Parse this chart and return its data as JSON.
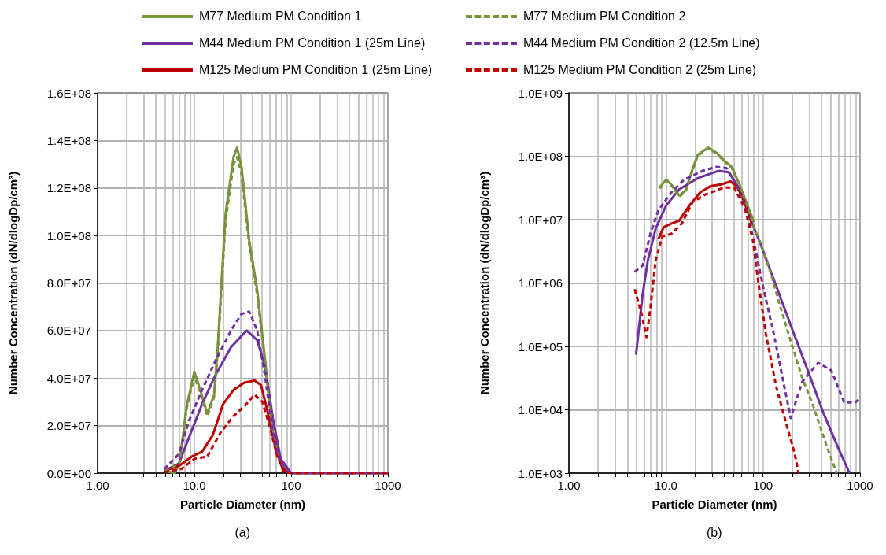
{
  "chart_data": [
    {
      "type": "line",
      "xlabel": "Particle Diameter (nm)",
      "ylabel": "Number Concentration (dN/dlogDp/cm³)",
      "annotations": [
        "(a)"
      ],
      "log": "x",
      "grid": true,
      "legend": "top",
      "marker": "none",
      "xlim": [
        1,
        1000
      ],
      "ylim": [
        0,
        160000000
      ],
      "xticks": [
        {
          "value": 1,
          "label": "1.00"
        },
        {
          "value": 2,
          "label": null
        },
        {
          "value": 3,
          "label": null
        },
        {
          "value": 4,
          "label": null
        },
        {
          "value": 5,
          "label": null
        },
        {
          "value": 6,
          "label": null
        },
        {
          "value": 7,
          "label": null
        },
        {
          "value": 8,
          "label": null
        },
        {
          "value": 9,
          "label": null
        },
        {
          "value": 10,
          "label": "10.0"
        },
        {
          "value": 20,
          "label": null
        },
        {
          "value": 30,
          "label": null
        },
        {
          "value": 40,
          "label": null
        },
        {
          "value": 50,
          "label": null
        },
        {
          "value": 60,
          "label": null
        },
        {
          "value": 70,
          "label": null
        },
        {
          "value": 80,
          "label": null
        },
        {
          "value": 90,
          "label": null
        },
        {
          "value": 100,
          "label": "100"
        },
        {
          "value": 200,
          "label": null
        },
        {
          "value": 300,
          "label": null
        },
        {
          "value": 400,
          "label": null
        },
        {
          "value": 500,
          "label": null
        },
        {
          "value": 600,
          "label": null
        },
        {
          "value": 700,
          "label": null
        },
        {
          "value": 800,
          "label": null
        },
        {
          "value": 900,
          "label": null
        },
        {
          "value": 1000,
          "label": "1000"
        }
      ],
      "yticks": [
        {
          "value": 0,
          "label": "0.0E+00"
        },
        {
          "value": 20000000,
          "label": "2.0E+07"
        },
        {
          "value": 40000000,
          "label": "4.0E+07"
        },
        {
          "value": 60000000,
          "label": "6.0E+07"
        },
        {
          "value": 80000000,
          "label": "8.0E+07"
        },
        {
          "value": 100000000,
          "label": "1.0E+08"
        },
        {
          "value": 120000000,
          "label": "1.2E+08"
        },
        {
          "value": 140000000,
          "label": "1.4E+08"
        },
        {
          "value": 160000000,
          "label": "1.6E+08"
        }
      ],
      "series": [
        {
          "name": "M77 Medium PM Condition 1",
          "color": "#77933c",
          "line_style": "solid",
          "x": [
            4.9,
            6.3,
            7.1,
            8.3,
            10,
            11.7,
            13.6,
            16,
            17.5,
            21,
            25.4,
            27.6,
            30.7,
            36.9,
            44.6,
            53.7,
            64.8,
            78,
            100,
            1000
          ],
          "values": [
            1000000,
            0,
            5000000,
            28000000,
            42700000,
            34000000,
            25000000,
            33000000,
            54000000,
            109000000,
            133000000,
            137000000,
            129000000,
            98000000,
            77000000,
            48000000,
            17000000,
            4000000,
            0,
            0
          ]
        },
        {
          "name": "M77 Medium PM Condition 2",
          "color": "#77933c",
          "line_style": "dashed",
          "x": [
            4.9,
            7,
            8.3,
            10,
            11.7,
            13.6,
            16,
            17.5,
            21,
            25.4,
            27.6,
            30.7,
            36.9,
            44.6,
            53.7,
            64.8,
            78,
            100,
            1000
          ],
          "values": [
            1000000,
            4000000,
            27000000,
            41000000,
            33000000,
            24000000,
            32000000,
            52000000,
            106000000,
            130000000,
            133000000,
            126000000,
            96000000,
            75000000,
            47000000,
            16000000,
            3000000,
            0,
            0
          ]
        },
        {
          "name": "M44 Medium PM Condition 1 (25m Line)",
          "color": "#7030a0",
          "line_style": "solid",
          "x": [
            4.9,
            6.9,
            8.8,
            12,
            16.4,
            23.9,
            34.7,
            44.6,
            53.7,
            64.8,
            78,
            100,
            1000
          ],
          "values": [
            1000000,
            4000000,
            15000000,
            29000000,
            41000000,
            53000000,
            60000000,
            56000000,
            45000000,
            23000000,
            6000000,
            0,
            0
          ]
        },
        {
          "name": "M44 Medium PM Condition 2 (12.5m Line)",
          "color": "#7030a0",
          "line_style": "dashed",
          "x": [
            4.9,
            6.9,
            8.8,
            12,
            16.4,
            23.9,
            30.7,
            36.9,
            44.6,
            53.7,
            64.8,
            78,
            100,
            1000
          ],
          "values": [
            1700000,
            8000000,
            22000000,
            35000000,
            47000000,
            60000000,
            67000000,
            68000000,
            60000000,
            41000000,
            17000000,
            4000000,
            0,
            0
          ]
        },
        {
          "name": "M125 Medium PM Condition 1 (25m Line)",
          "color": "#c00000",
          "line_style": "solid",
          "x": [
            4.9,
            6.9,
            9.4,
            12,
            15.5,
            19.8,
            25.4,
            32.6,
            41.9,
            48.9,
            57,
            68.8,
            82.9,
            100,
            1000
          ],
          "values": [
            1000000,
            3000000,
            7000000,
            9000000,
            16000000,
            29000000,
            35000000,
            38000000,
            39000000,
            37000000,
            26000000,
            10500000,
            1000000,
            0,
            0
          ]
        },
        {
          "name": "M125 Medium PM Condition 2 (25m Line)",
          "color": "#c00000",
          "line_style": "dashed",
          "x": [
            4.9,
            7.3,
            10,
            13.6,
            18.6,
            25.4,
            32.6,
            41.9,
            50.4,
            60.6,
            73,
            88,
            100,
            1000
          ],
          "values": [
            500000,
            1700000,
            6000000,
            7000000,
            17000000,
            24000000,
            28000000,
            33000000,
            30000000,
            19000000,
            6000000,
            500000,
            0,
            0
          ]
        }
      ]
    },
    {
      "type": "line",
      "xlabel": "Particle Diameter (nm)",
      "ylabel": "Number Concentration (dN/dlogDp/cm³)",
      "annotations": [
        "(b)"
      ],
      "log": "xy",
      "grid": true,
      "marker": "none",
      "xlim": [
        1,
        1000
      ],
      "ylim": [
        1000,
        1000000000
      ],
      "xticks": [
        {
          "value": 1,
          "label": "1.00"
        },
        {
          "value": 2,
          "label": null
        },
        {
          "value": 3,
          "label": null
        },
        {
          "value": 4,
          "label": null
        },
        {
          "value": 5,
          "label": null
        },
        {
          "value": 6,
          "label": null
        },
        {
          "value": 7,
          "label": null
        },
        {
          "value": 8,
          "label": null
        },
        {
          "value": 9,
          "label": null
        },
        {
          "value": 10,
          "label": "10.0"
        },
        {
          "value": 20,
          "label": null
        },
        {
          "value": 30,
          "label": null
        },
        {
          "value": 40,
          "label": null
        },
        {
          "value": 50,
          "label": null
        },
        {
          "value": 60,
          "label": null
        },
        {
          "value": 70,
          "label": null
        },
        {
          "value": 80,
          "label": null
        },
        {
          "value": 90,
          "label": null
        },
        {
          "value": 100,
          "label": "100"
        },
        {
          "value": 200,
          "label": null
        },
        {
          "value": 300,
          "label": null
        },
        {
          "value": 400,
          "label": null
        },
        {
          "value": 500,
          "label": null
        },
        {
          "value": 600,
          "label": null
        },
        {
          "value": 700,
          "label": null
        },
        {
          "value": 800,
          "label": null
        },
        {
          "value": 900,
          "label": null
        },
        {
          "value": 1000,
          "label": "1000"
        }
      ],
      "yticks": [
        {
          "value": 1000,
          "label": "1.0E+03"
        },
        {
          "value": 10000,
          "label": "1.0E+04"
        },
        {
          "value": 100000,
          "label": "1.0E+05"
        },
        {
          "value": 1000000,
          "label": "1.0E+06"
        },
        {
          "value": 10000000,
          "label": "1.0E+07"
        },
        {
          "value": 100000000,
          "label": "1.0E+08"
        },
        {
          "value": 1000000000,
          "label": "1.0E+09"
        }
      ],
      "series": [
        {
          "color": "#77933c",
          "line_style": "solid",
          "x": [
            8.6,
            10.1,
            12.1,
            13.7,
            16,
            18.2,
            21.2,
            27.2,
            32.8,
            39.5,
            47.6,
            57.3,
            69.1,
            80.8
          ],
          "values": [
            32000000,
            43000000,
            32000000,
            24000000,
            29000000,
            54000000,
            105000000,
            137000000,
            115000000,
            87000000,
            68000000,
            36000000,
            17000000,
            9100000
          ]
        },
        {
          "color": "#77933c",
          "line_style": "dashed",
          "x": [
            8.6,
            10.1,
            12.1,
            13.7,
            16,
            18.2,
            21.2,
            27.2,
            32.8,
            39.5,
            47.6,
            57.3,
            69.1,
            83.7,
            94.6,
            121,
            146,
            198,
            255,
            326,
            445,
            574
          ],
          "values": [
            31000000,
            41000000,
            31000000,
            23000000,
            28000000,
            52000000,
            102000000,
            133000000,
            112000000,
            85000000,
            66000000,
            35000000,
            16000000,
            6600000,
            4100000,
            1400000,
            500000,
            107000,
            31000,
            12000,
            2900,
            1000
          ]
        },
        {
          "color": "#7030a0",
          "line_style": "solid",
          "x": [
            4.92,
            5.75,
            6.52,
            7.84,
            10.1,
            13.7,
            21.2,
            34.9,
            44.6,
            57.3,
            73.6,
            94.6,
            137,
            199,
            289,
            419,
            610,
            780
          ],
          "values": [
            74000,
            660000,
            2300000,
            7200000,
            17000000,
            30000000,
            45000000,
            59000000,
            56000000,
            30000000,
            10500000,
            4100000,
            890000,
            190000,
            42000,
            8900,
            2300,
            1000
          ]
        },
        {
          "color": "#7030a0",
          "line_style": "dashed",
          "x": [
            4.76,
            5.75,
            6.92,
            8.35,
            11.4,
            15.5,
            24,
            32.8,
            42.1,
            54.2,
            69.1,
            83.7,
            100,
            129,
            166,
            193,
            226,
            255,
            370,
            505,
            688,
            889,
            1000
          ],
          "values": [
            1500000,
            1900000,
            6000000,
            14000000,
            27000000,
            43000000,
            59000000,
            68000000,
            65000000,
            33000000,
            13000000,
            3400000,
            890000,
            160000,
            23000,
            7400,
            16000,
            28000,
            55000,
            42000,
            13000,
            13000,
            15000
          ]
        },
        {
          "color": "#c00000",
          "line_style": "solid",
          "x": [
            8.35,
            9.46,
            11.4,
            13.7,
            17.6,
            22.6,
            29,
            37.2,
            46.3,
            54.2,
            65.1,
            76.2
          ],
          "values": [
            4900000,
            7600000,
            8700000,
            9600000,
            17000000,
            27000000,
            34000000,
            36000000,
            40000000,
            33000000,
            19000000,
            8700000
          ]
        },
        {
          "color": "#c00000",
          "line_style": "dashed",
          "x": [
            4.76,
            5.57,
            6.31,
            6.92,
            7.84,
            9.18,
            11.4,
            14.6,
            18.8,
            25.6,
            39.5,
            50.6,
            65.1,
            78.5,
            89,
            107,
            137,
            176,
            211,
            233
          ],
          "values": [
            800000,
            340000,
            140000,
            410000,
            2300000,
            5400000,
            6000000,
            8700000,
            19000000,
            25000000,
            32000000,
            32000000,
            15000000,
            4900000,
            1100000,
            160000,
            23000,
            5600,
            2100,
            1000
          ]
        }
      ]
    }
  ]
}
